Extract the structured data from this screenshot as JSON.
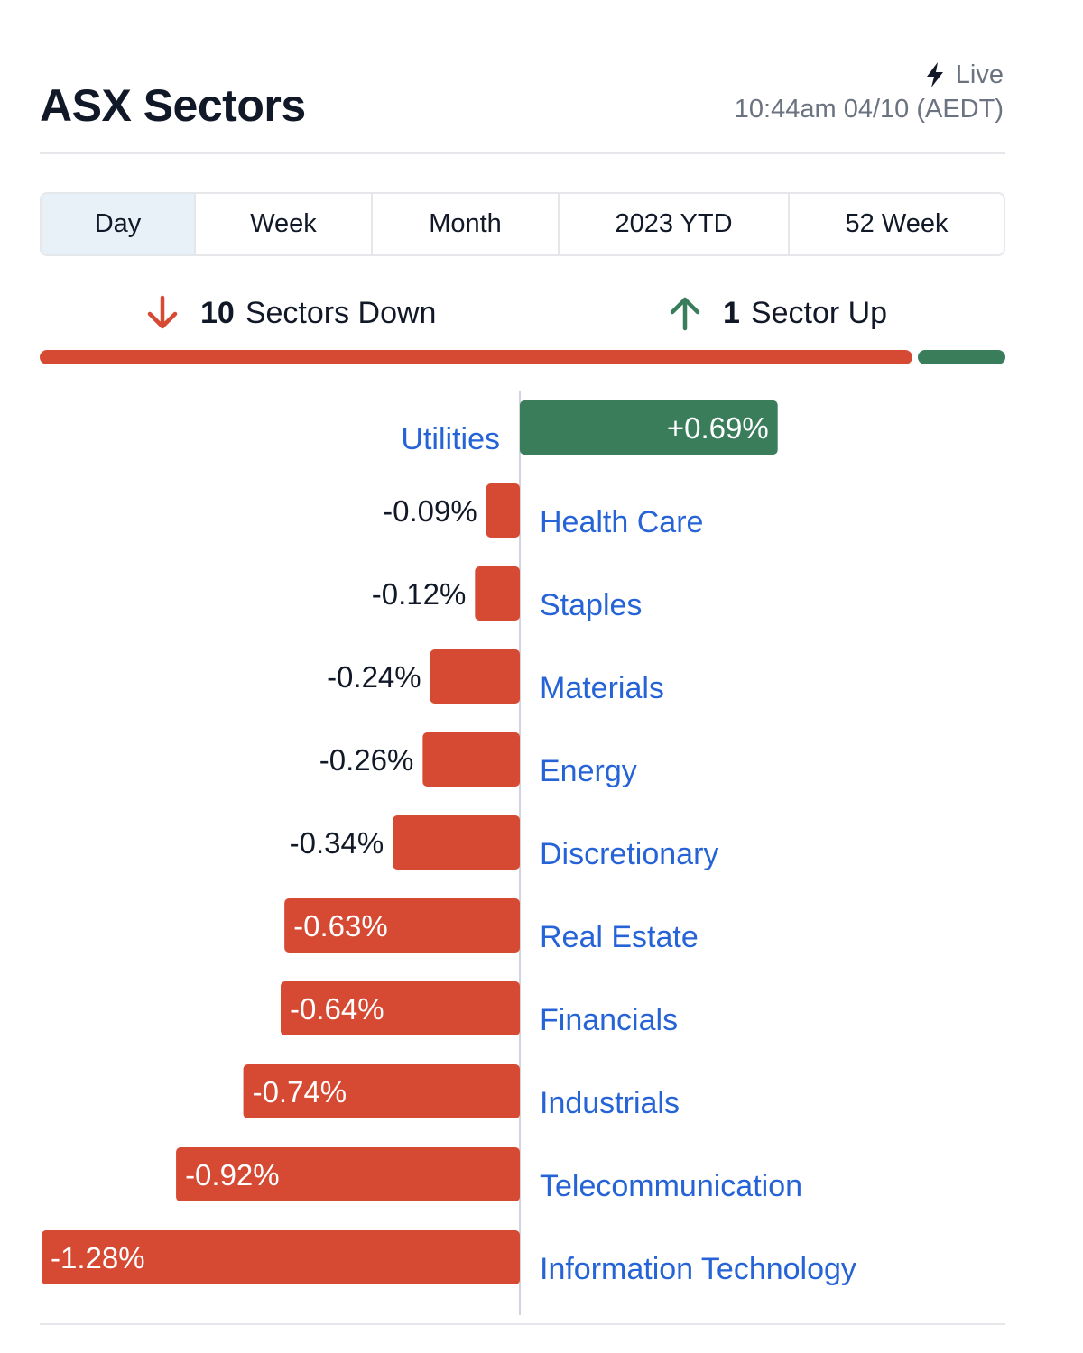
{
  "header": {
    "title": "ASX Sectors",
    "live_label": "Live",
    "timestamp": "10:44am 04/10 (AEDT)"
  },
  "tabs": [
    {
      "label": "Day",
      "active": true
    },
    {
      "label": "Week",
      "active": false
    },
    {
      "label": "Month",
      "active": false
    },
    {
      "label": "2023 YTD",
      "active": false
    },
    {
      "label": "52 Week",
      "active": false
    }
  ],
  "summary": {
    "down_count": "10",
    "down_text": "Sectors Down",
    "up_count": "1",
    "up_text": "Sector Up"
  },
  "colors": {
    "down": "#d64933",
    "up": "#3a7d5b",
    "link": "#2563d6",
    "axis": "#d1d5db"
  },
  "chart_data": {
    "type": "bar",
    "orientation": "horizontal",
    "title": "",
    "xlabel": "",
    "ylabel": "",
    "categories": [
      "Utilities",
      "Health Care",
      "Staples",
      "Materials",
      "Energy",
      "Discretionary",
      "Real Estate",
      "Financials",
      "Industrials",
      "Telecommunication",
      "Information Technology"
    ],
    "values": [
      0.69,
      -0.09,
      -0.12,
      -0.24,
      -0.26,
      -0.34,
      -0.63,
      -0.64,
      -0.74,
      -0.92,
      -1.28
    ],
    "value_labels": [
      "+0.69%",
      "-0.09%",
      "-0.12%",
      "-0.24%",
      "-0.26%",
      "-0.34%",
      "-0.63%",
      "-0.64%",
      "-0.74%",
      "-0.92%",
      "-1.28%"
    ],
    "unit": "%",
    "grid": false,
    "legend": "none"
  }
}
